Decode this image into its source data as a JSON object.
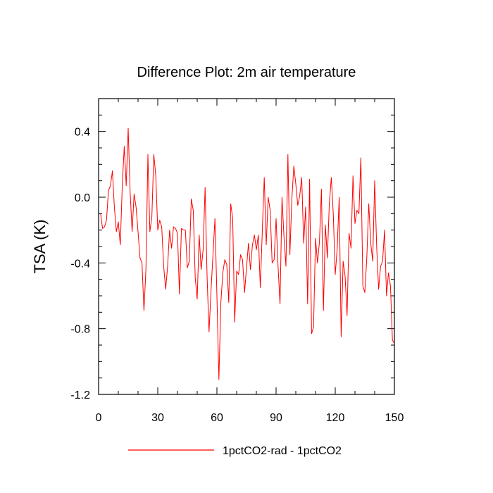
{
  "chart_data": {
    "type": "line",
    "title": "Difference Plot: 2m air temperature",
    "xlabel": "",
    "ylabel": "TSA  (K)",
    "xlim": [
      0,
      150
    ],
    "ylim": [
      -1.2,
      0.6
    ],
    "x_ticks": [
      0,
      30,
      60,
      90,
      120,
      150
    ],
    "x_tick_labels": [
      "0",
      "30",
      "60",
      "90",
      "120",
      "150"
    ],
    "y_ticks": [
      -1.2,
      -0.8,
      -0.4,
      0.0,
      0.4
    ],
    "y_tick_labels": [
      "-1.2",
      "-0.8",
      "-0.4",
      "0.0",
      "0.4"
    ],
    "grid": false,
    "legend_position": "bottom-center",
    "series": [
      {
        "name": "1pctCO2-rad - 1pctCO2",
        "color": "#ff0000",
        "x_start": 1,
        "x_step": 1,
        "values": [
          -0.1,
          -0.19,
          -0.18,
          -0.14,
          0.04,
          0.07,
          0.16,
          -0.06,
          -0.21,
          -0.15,
          -0.29,
          0.07,
          0.31,
          0.07,
          0.42,
          0.03,
          -0.21,
          0.02,
          -0.06,
          -0.21,
          -0.37,
          -0.4,
          -0.69,
          -0.44,
          0.26,
          -0.21,
          -0.12,
          0.26,
          0.13,
          -0.2,
          -0.14,
          -0.18,
          -0.42,
          -0.56,
          -0.42,
          -0.2,
          -0.31,
          -0.18,
          -0.19,
          -0.22,
          -0.59,
          -0.19,
          -0.2,
          -0.2,
          -0.43,
          -0.39,
          -0.01,
          -0.08,
          -0.49,
          -0.62,
          -0.23,
          -0.44,
          -0.32,
          0.06,
          -0.48,
          -0.82,
          -0.57,
          -0.35,
          -0.13,
          -0.6,
          -1.11,
          -0.64,
          -0.46,
          -0.38,
          -0.41,
          -0.64,
          -0.04,
          -0.13,
          -0.76,
          -0.45,
          -0.47,
          -0.35,
          -0.38,
          -0.58,
          -0.43,
          -0.28,
          -0.44,
          -0.29,
          -0.23,
          -0.32,
          -0.23,
          -0.55,
          -0.21,
          0.12,
          -0.29,
          0.0,
          -0.08,
          -0.4,
          -0.38,
          -0.13,
          -0.42,
          -0.65,
          0.0,
          -0.24,
          -0.42,
          0.26,
          -0.35,
          -0.01,
          0.19,
          0.08,
          -0.05,
          0.01,
          0.12,
          -0.28,
          -0.06,
          -0.65,
          0.11,
          -0.83,
          -0.79,
          -0.25,
          -0.4,
          -0.27,
          0.05,
          -0.69,
          -0.17,
          -0.37,
          -0.04,
          0.12,
          -0.1,
          -0.47,
          -0.31,
          0.0,
          -0.85,
          -0.39,
          -0.48,
          -0.72,
          -0.22,
          -0.31,
          0.13,
          -0.16,
          -0.08,
          -0.1,
          0.24,
          -0.54,
          -0.58,
          -0.37,
          -0.04,
          -0.28,
          -0.39,
          0.1,
          -0.3,
          -0.56,
          -0.42,
          -0.39,
          -0.2,
          -0.6,
          -0.46,
          -0.54,
          -0.87,
          -0.89
        ]
      }
    ]
  }
}
